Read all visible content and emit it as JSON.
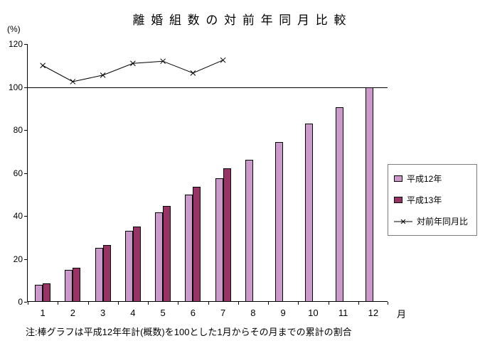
{
  "note": "注:棒グラフは平成12年年計(概数)を100とした1月からその月までの累計の割合",
  "chart_data": {
    "type": "bar+line",
    "title": "離 婚 組 数 の 対 前 年 同 月 比 較",
    "ylabel": "(%)",
    "xlabel": "月",
    "categories": [
      "1",
      "2",
      "3",
      "4",
      "5",
      "6",
      "7",
      "8",
      "9",
      "10",
      "11",
      "12"
    ],
    "series": [
      {
        "name": "平成12年",
        "kind": "bar",
        "color": "#CC99CC",
        "values": [
          8,
          15,
          25,
          33,
          41.5,
          50,
          57.5,
          66,
          74.5,
          83,
          90.5,
          100
        ]
      },
      {
        "name": "平成13年",
        "kind": "bar",
        "color": "#993366",
        "values": [
          8.5,
          16,
          26.5,
          35,
          44.5,
          53.5,
          62,
          null,
          null,
          null,
          null,
          null
        ]
      },
      {
        "name": "対前年同月比",
        "kind": "line",
        "color": "#000000",
        "marker": "x",
        "values": [
          110,
          102.5,
          105.5,
          111,
          112,
          106.5,
          112.5,
          null,
          null,
          null,
          null,
          null
        ]
      }
    ],
    "ylim": [
      0,
      120
    ],
    "yticks": [
      0,
      20,
      40,
      60,
      80,
      100,
      120
    ],
    "reference_line": 100,
    "grid": false,
    "legend_position": "right"
  }
}
